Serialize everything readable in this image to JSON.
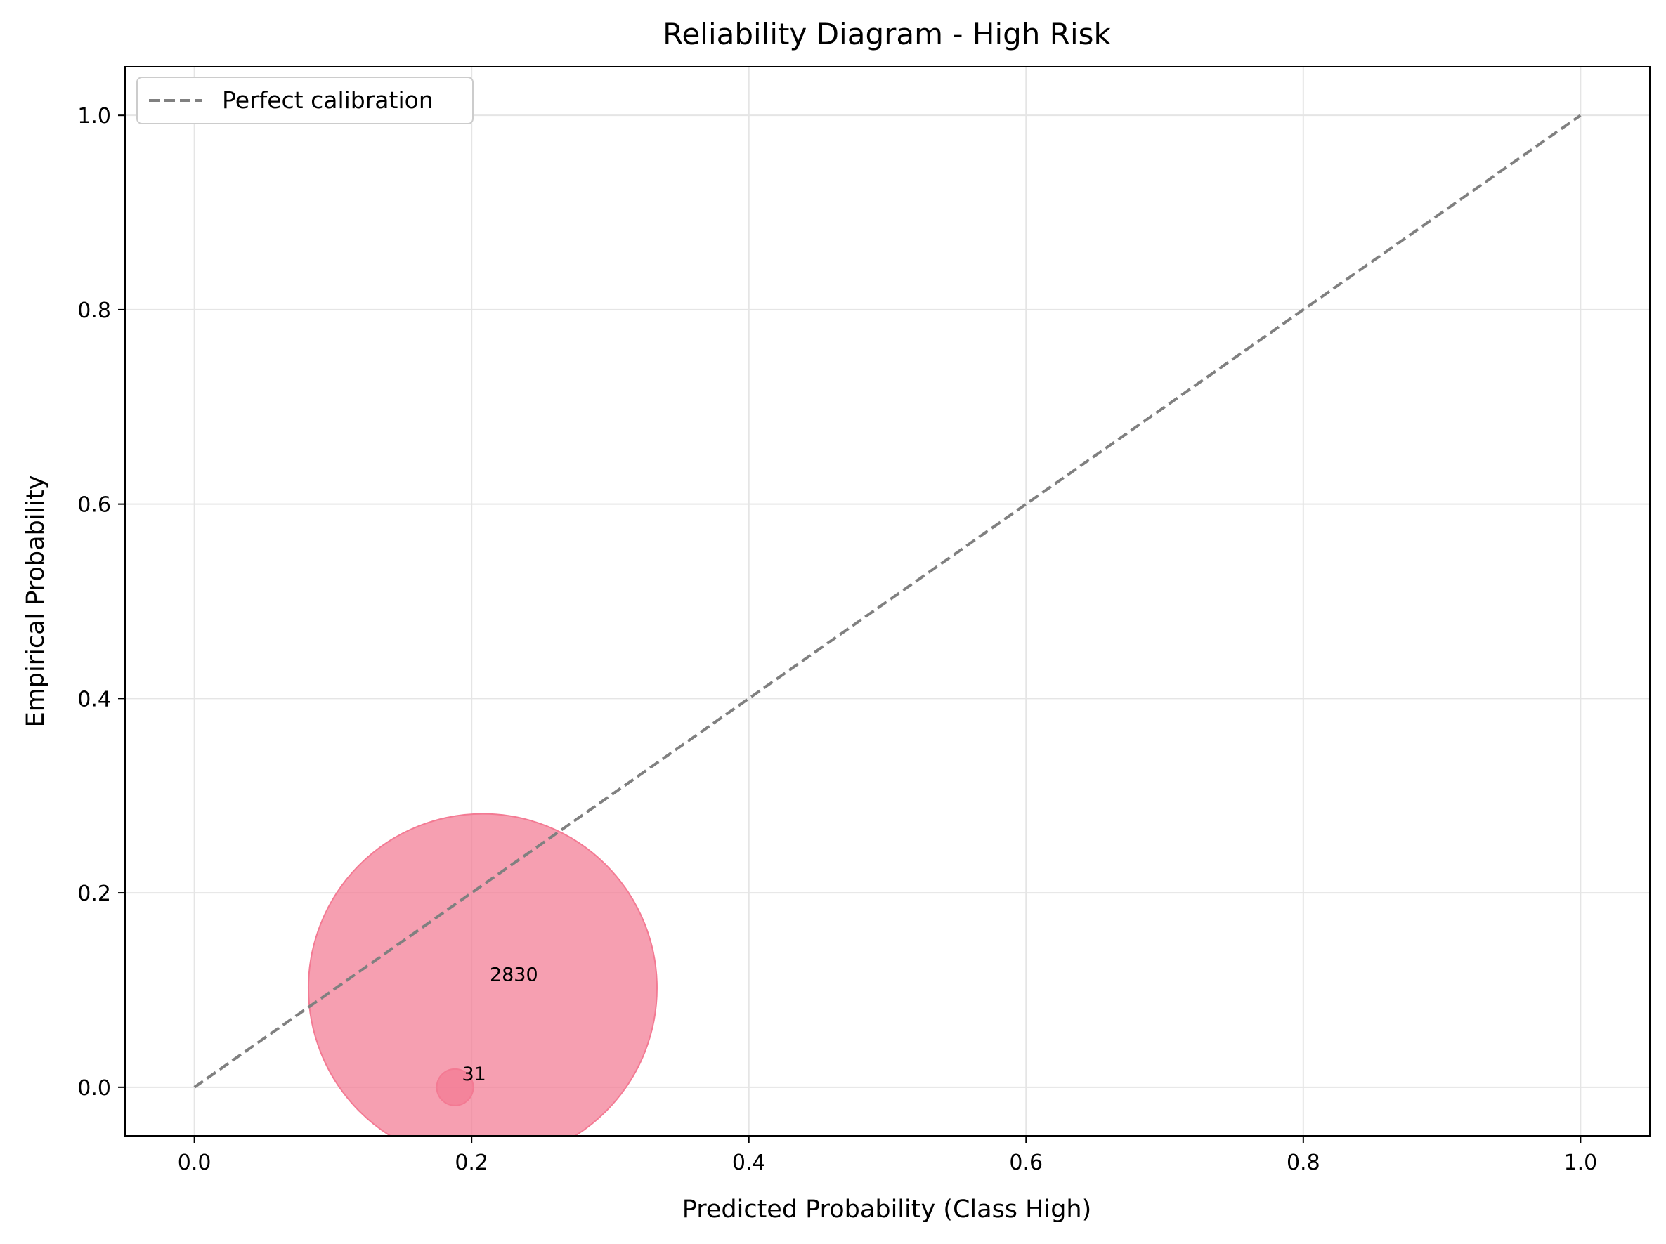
{
  "chart_data": {
    "type": "scatter",
    "title": "Reliability Diagram - High Risk",
    "xlabel": "Predicted Probability (Class High)",
    "ylabel": "Empirical Probability",
    "xlim": [
      -0.05,
      1.05
    ],
    "ylim": [
      -0.05,
      1.05
    ],
    "xticks": [
      "0.0",
      "0.2",
      "0.4",
      "0.6",
      "0.8",
      "1.0"
    ],
    "yticks": [
      "0.0",
      "0.2",
      "0.4",
      "0.6",
      "0.8",
      "1.0"
    ],
    "grid": true,
    "legend": {
      "placement": "top-left",
      "entries": [
        "Perfect calibration"
      ]
    },
    "reference_line": {
      "name": "Perfect calibration",
      "x": [
        0.0,
        1.0
      ],
      "y": [
        0.0,
        1.0
      ],
      "style": "dashed",
      "color": "#808080"
    },
    "points": [
      {
        "x": 0.208,
        "y": 0.102,
        "count": 2830,
        "label": "2830"
      },
      {
        "x": 0.188,
        "y": 0.0,
        "count": 31,
        "label": "31"
      }
    ],
    "point_color": "#f37a93"
  }
}
